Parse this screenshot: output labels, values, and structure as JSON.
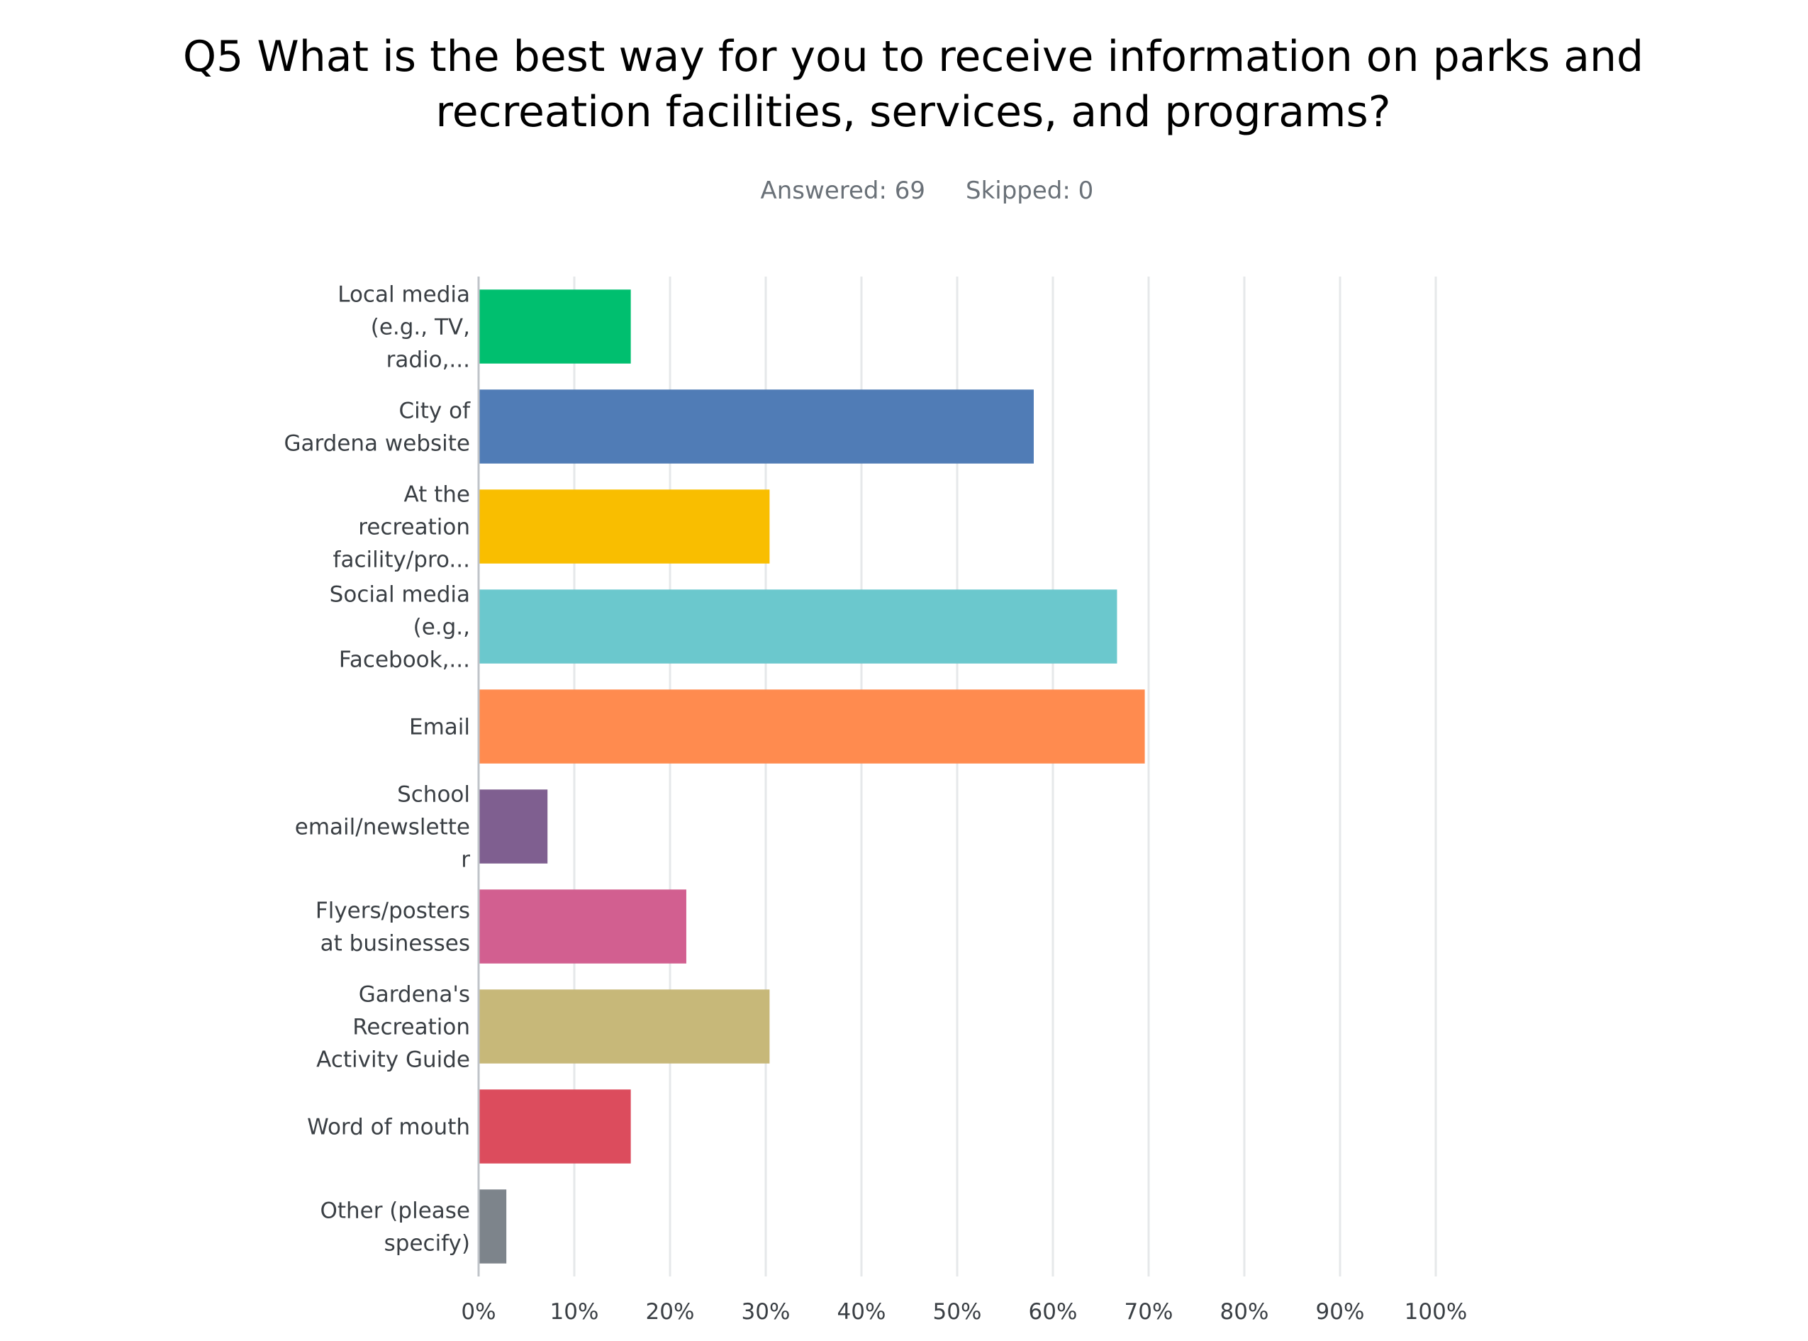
{
  "header": {
    "question_title_line1": "Q5 What is the best way for you to receive information on parks and",
    "question_title_line2": "recreation facilities, services, and programs?",
    "answered_label": "Answered: 69",
    "skipped_label": "Skipped: 0"
  },
  "chart_data": {
    "type": "bar",
    "orientation": "horizontal",
    "title": "Q5 What is the best way for you to receive information on parks and recreation facilities, services, and programs?",
    "categories": [
      "Local media (e.g., TV, radio,...",
      "City of Gardena website",
      "At the recreation facility/pro...",
      "Social media (e.g., Facebook,...",
      "Email",
      "School email/newsletter",
      "Flyers/posters at businesses",
      "Gardena's Recreation Activity Guide",
      "Word of mouth",
      "Other (please specify)"
    ],
    "category_label_lines": [
      [
        "Local media",
        "(e.g., TV,",
        "radio,..."
      ],
      [
        "City of",
        "Gardena website"
      ],
      [
        "At the",
        "recreation",
        "facility/pro..."
      ],
      [
        "Social media",
        "(e.g.,",
        "Facebook,..."
      ],
      [
        "Email"
      ],
      [
        "School",
        "email/newslette",
        "r"
      ],
      [
        "Flyers/posters",
        "at businesses"
      ],
      [
        "Gardena's",
        "Recreation",
        "Activity Guide"
      ],
      [
        "Word of mouth"
      ],
      [
        "Other (please",
        "specify)"
      ]
    ],
    "values": [
      15.9,
      58.0,
      30.4,
      66.7,
      69.6,
      7.2,
      21.7,
      30.4,
      15.9,
      2.9
    ],
    "colors": [
      "#00bf6f",
      "#507cb6",
      "#f9be00",
      "#6bc8cd",
      "#ff8b4f",
      "#7f5f90",
      "#d25f90",
      "#c7b879",
      "#dc4c5d",
      "#7d848b"
    ],
    "xlim": [
      0,
      100
    ],
    "x_ticks": [
      "0%",
      "10%",
      "20%",
      "30%",
      "40%",
      "50%",
      "60%",
      "70%",
      "80%",
      "90%",
      "100%"
    ],
    "grid": true,
    "xlabel": "",
    "ylabel": ""
  }
}
